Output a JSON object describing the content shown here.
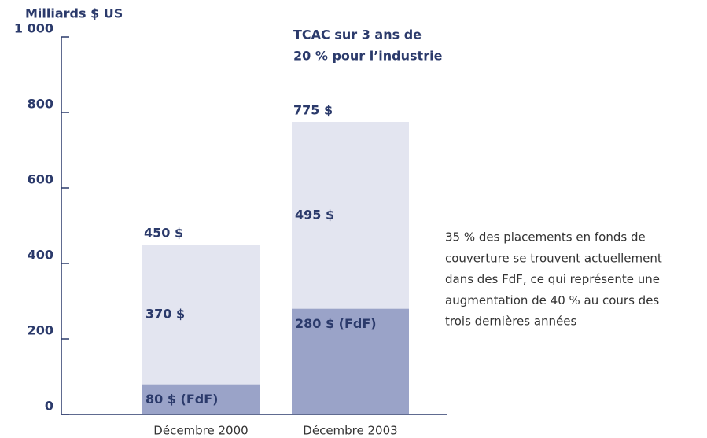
{
  "chart_data": {
    "type": "stacked_bar",
    "y_label": "Milliards $ US",
    "categories": [
      "Décembre 2000",
      "Décembre 2003"
    ],
    "series": [
      {
        "color": "#9aa3c8",
        "values": [
          80,
          280
        ],
        "value_labels": [
          "80 $ (FdF)",
          "280 $ (FdF)"
        ]
      },
      {
        "color": "#e3e5f0",
        "values": [
          370,
          495
        ],
        "value_labels": [
          "370 $",
          "495 $"
        ]
      }
    ],
    "totals": [
      450,
      775
    ],
    "total_labels": [
      "450 $",
      "775 $"
    ],
    "ylim": [
      0,
      1000
    ],
    "yticks": [
      0,
      200,
      400,
      600,
      800,
      {
        "value": 1000,
        "label": "1 000"
      }
    ],
    "annotation": [
      "TCAC sur 3 ans de",
      "20 % pour l’industrie"
    ],
    "note": [
      "35 % des placements en fonds de",
      "couverture se trouvent actuellement",
      "dans des FdF, ce qui représente une",
      "augmentation de 40 % au cours des",
      "trois dernières années"
    ]
  }
}
